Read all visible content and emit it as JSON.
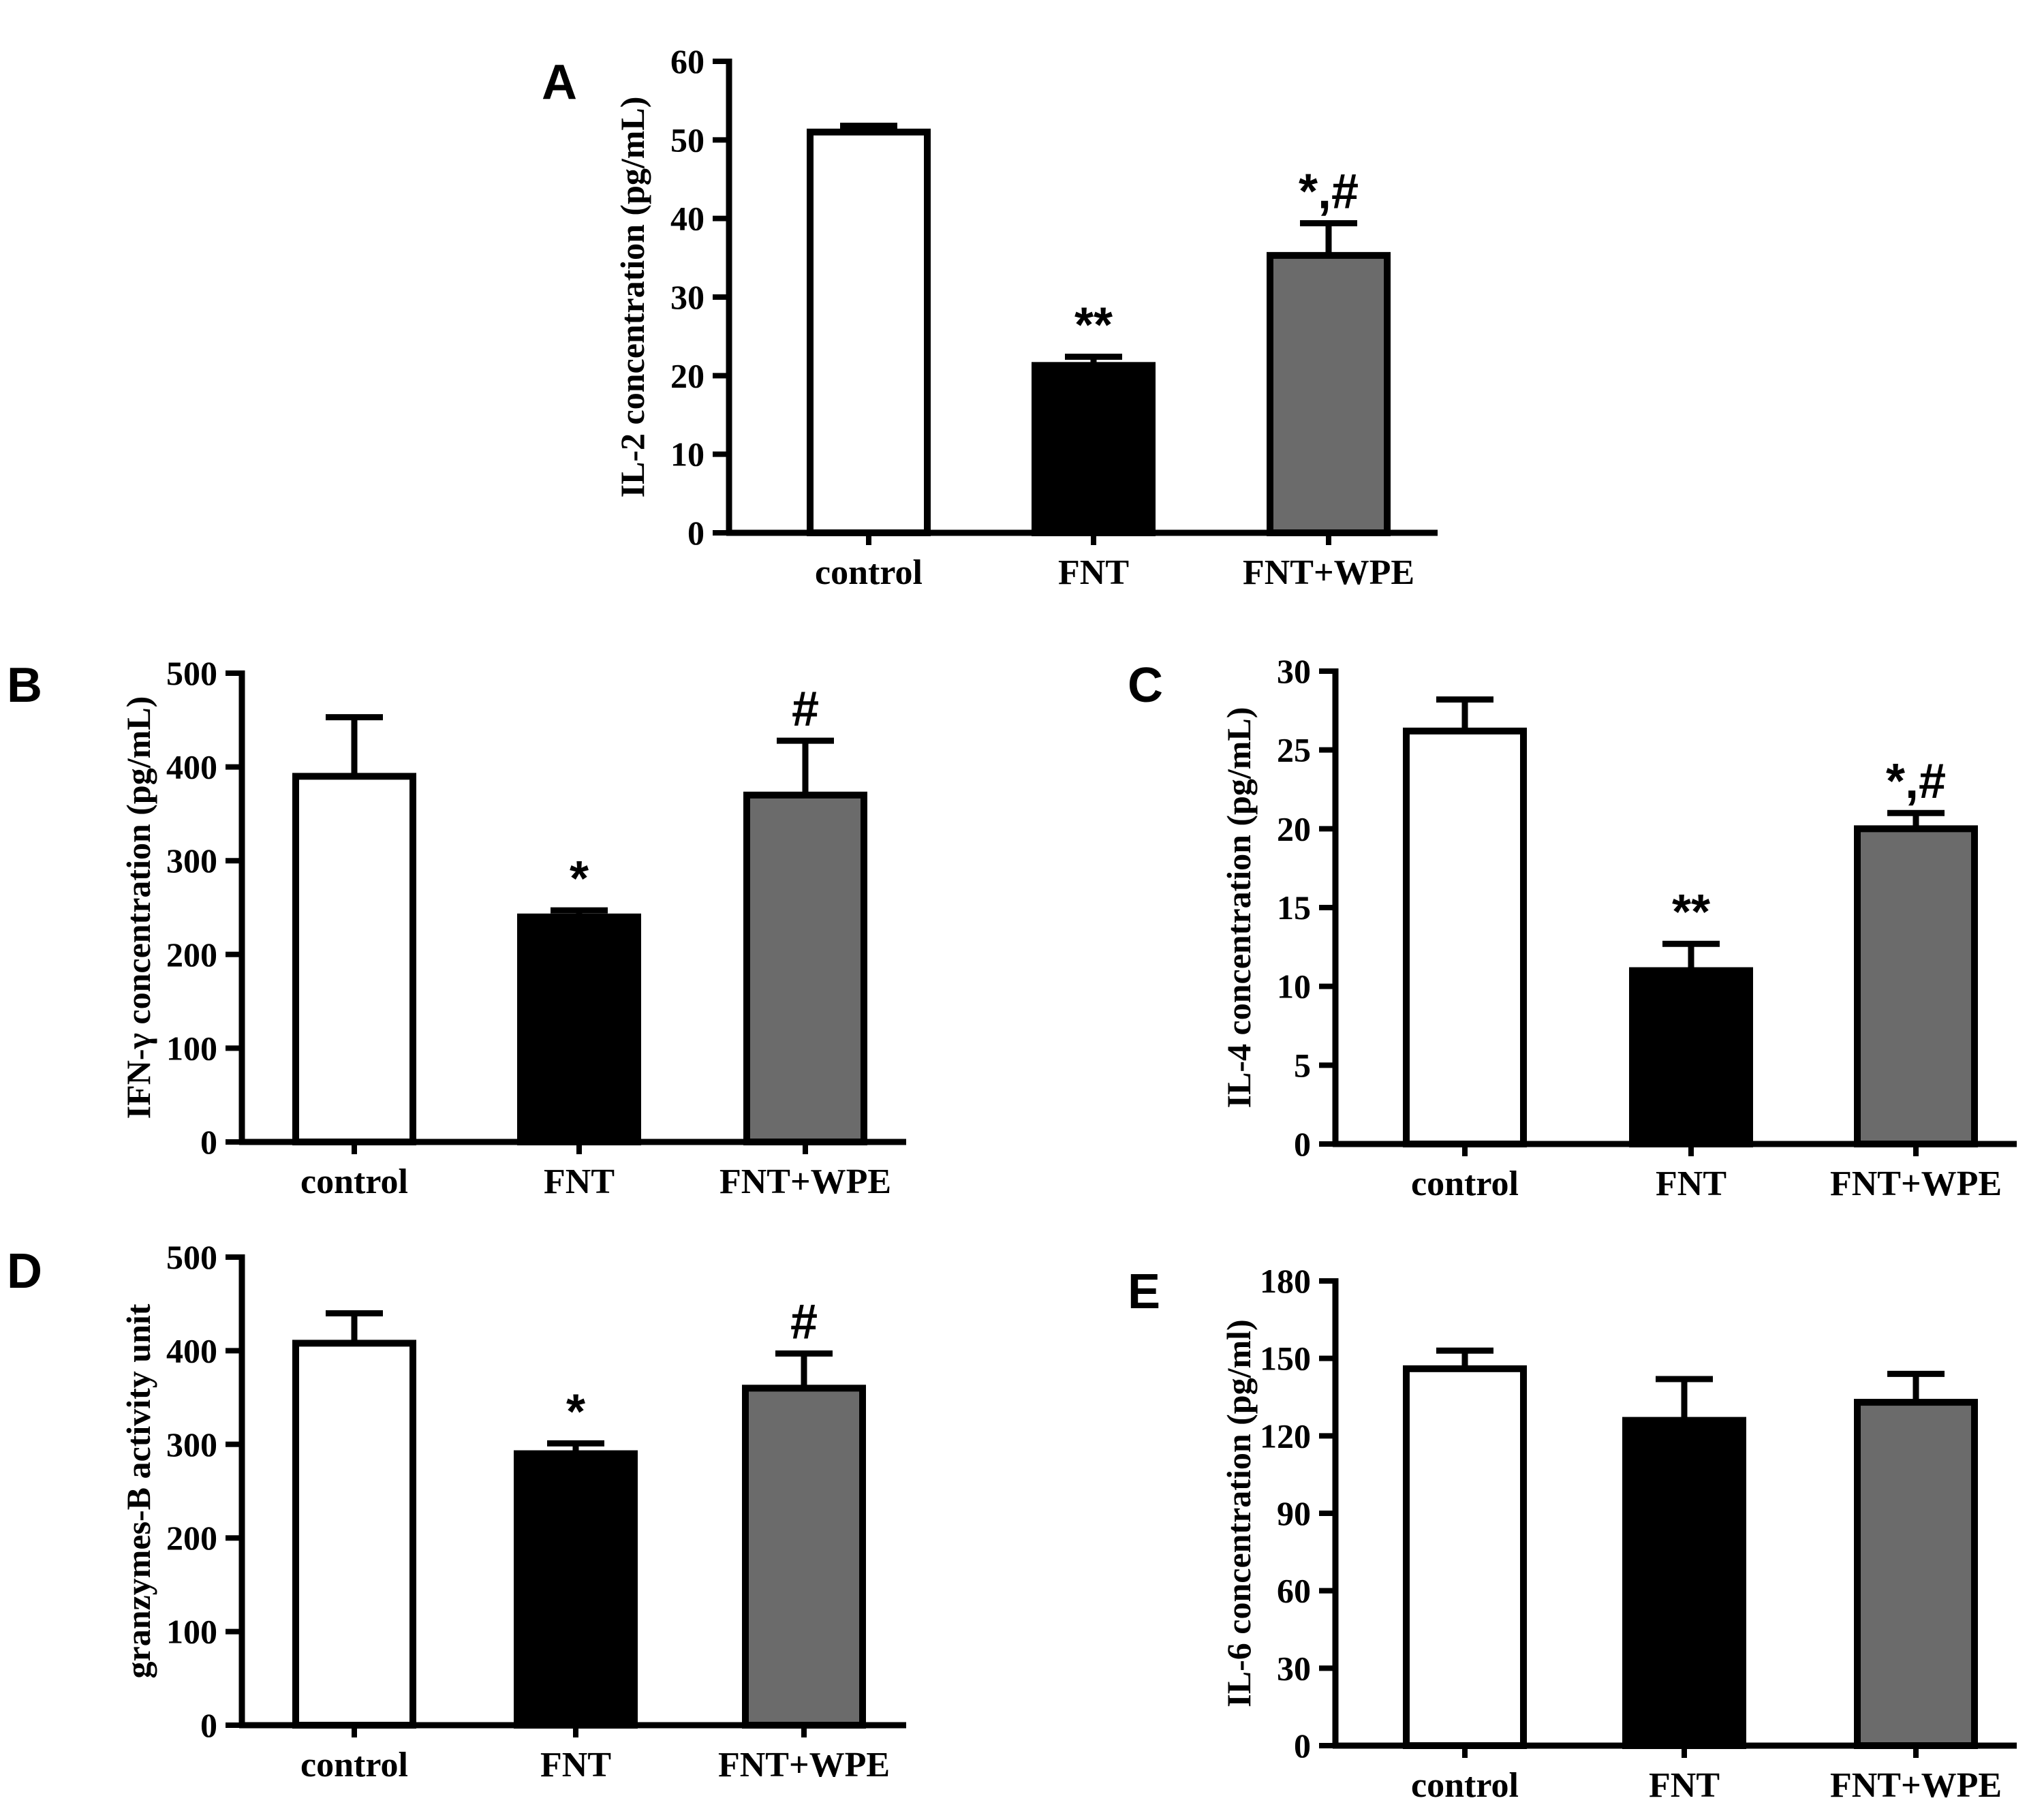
{
  "figure": {
    "colors": {
      "control": "#ffffff",
      "FNT": "#000000",
      "FNT+WPE": "#6b6b6b",
      "axis": "#000000"
    }
  },
  "chart_data": [
    {
      "panel": "A",
      "type": "bar",
      "categories": [
        "control",
        "FNT",
        "FNT+WPE"
      ],
      "values": [
        51,
        21.3,
        35.3
      ],
      "errors": [
        0.8,
        1.1,
        4.1
      ],
      "annotations": [
        "",
        "**",
        "*,#"
      ],
      "ylabel": "IL-2 concentration (pg/mL)",
      "yticks": [
        "0",
        "10",
        "20",
        "30",
        "40",
        "50",
        "60"
      ],
      "ylim": [
        0,
        60
      ]
    },
    {
      "panel": "B",
      "type": "bar",
      "categories": [
        "control",
        "FNT",
        "FNT+WPE"
      ],
      "values": [
        390,
        240,
        370
      ],
      "errors": [
        63,
        7,
        58
      ],
      "annotations": [
        "",
        "*",
        "#"
      ],
      "ylabel": "IFN-γ concentration (pg/mL)",
      "yticks": [
        "0",
        "100",
        "200",
        "300",
        "400",
        "500"
      ],
      "ylim": [
        0,
        500
      ]
    },
    {
      "panel": "C",
      "type": "bar",
      "categories": [
        "control",
        "FNT",
        "FNT+WPE"
      ],
      "values": [
        26.2,
        11.0,
        20.0
      ],
      "errors": [
        2.0,
        1.7,
        1.0
      ],
      "annotations": [
        "",
        "**",
        "*,#"
      ],
      "ylabel": "IL-4 concentration (pg/mL)",
      "yticks": [
        "0",
        "5",
        "10",
        "15",
        "20",
        "25",
        "30"
      ],
      "ylim": [
        0,
        30
      ]
    },
    {
      "panel": "D",
      "type": "bar",
      "categories": [
        "control",
        "FNT",
        "FNT+WPE"
      ],
      "values": [
        408,
        290,
        360
      ],
      "errors": [
        32,
        11,
        37
      ],
      "annotations": [
        "",
        "*",
        "#"
      ],
      "ylabel": "granzymes-B activity unit",
      "yticks": [
        "0",
        "100",
        "200",
        "300",
        "400",
        "500"
      ],
      "ylim": [
        0,
        500
      ]
    },
    {
      "panel": "E",
      "type": "bar",
      "categories": [
        "control",
        "FNT",
        "FNT+WPE"
      ],
      "values": [
        146,
        126,
        133
      ],
      "errors": [
        7,
        16,
        11
      ],
      "annotations": [
        "",
        "",
        ""
      ],
      "ylabel": "IL-6 concentration (pg/ml)",
      "yticks": [
        "0",
        "30",
        "60",
        "90",
        "120",
        "150",
        "180"
      ],
      "ylim": [
        0,
        180
      ]
    }
  ]
}
